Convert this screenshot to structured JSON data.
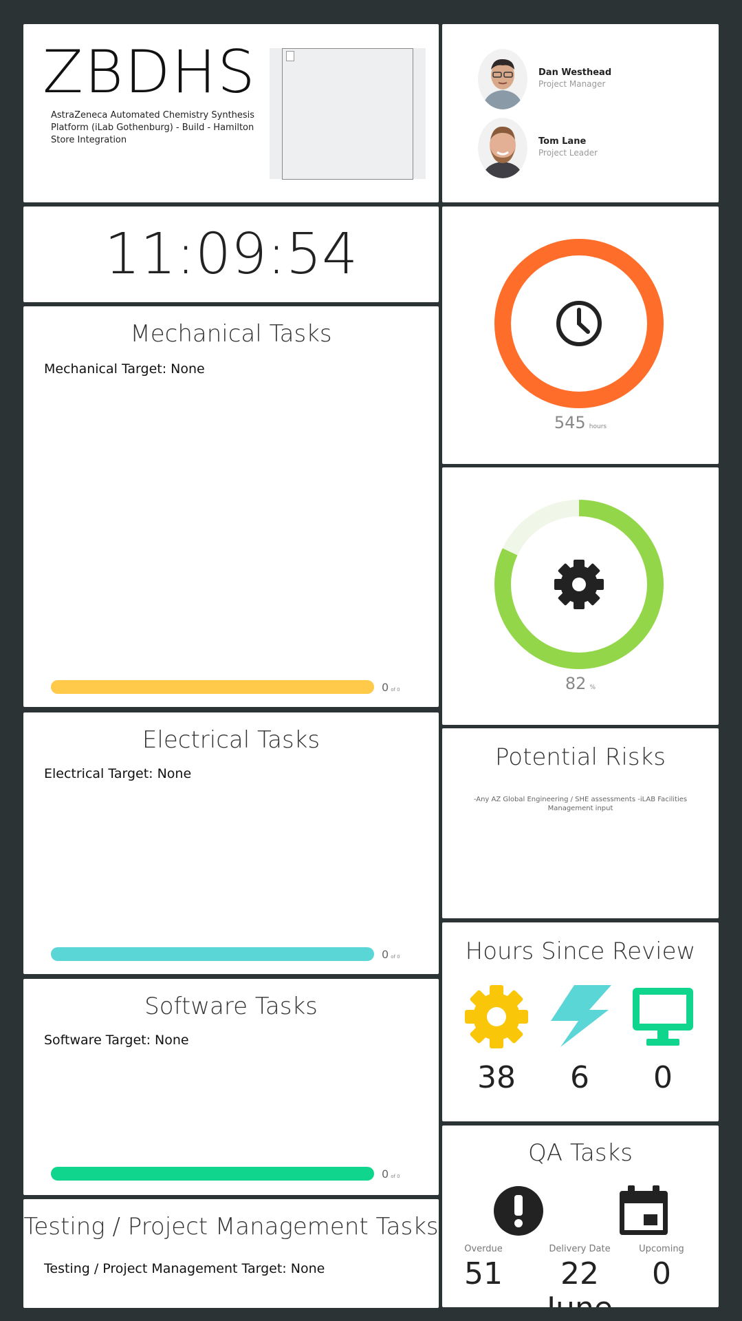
{
  "project": {
    "code": "ZBDHS",
    "description": "AstraZeneca Automated Chemistry Synthesis Platform (iLab Gothenburg) - Build - Hamilton Store Integration"
  },
  "people": [
    {
      "name": "Dan Westhead",
      "role": "Project Manager"
    },
    {
      "name": "Tom Lane",
      "role": "Project Leader"
    }
  ],
  "clock": {
    "time": "11:09:54"
  },
  "hours_gauge": {
    "value": "545",
    "unit": "hours",
    "icon": "clock-icon",
    "color": "#ff6d2a",
    "fraction": 1.0
  },
  "progress_gauge": {
    "value": "82",
    "unit": "%",
    "icon": "gear-icon",
    "color": "#94d64a",
    "track_color": "#f0f7e8",
    "fraction": 0.82
  },
  "mechanical": {
    "title": "Mechanical Tasks",
    "target": "Mechanical Target: None",
    "count": "0",
    "of": "of 0",
    "color": "#ffca4a",
    "fraction": 1.0
  },
  "electrical": {
    "title": "Electrical Tasks",
    "target": "Electrical Target: None",
    "count": "0",
    "of": "of 0",
    "color": "#5bd6d6",
    "fraction": 1.0
  },
  "software": {
    "title": "Software Tasks",
    "target": "Software Target: None",
    "count": "0",
    "of": "of 0",
    "color": "#0fd68c",
    "fraction": 1.0
  },
  "testing": {
    "title": "Testing / Project Management Tasks",
    "target": "Testing / Project Management Target: None"
  },
  "risks": {
    "title": "Potential Risks",
    "text": "-Any AZ Global Engineering / SHE assessments -iLAB Facilities Management input"
  },
  "hours_since_review": {
    "title": "Hours Since Review",
    "items": [
      {
        "icon": "gear-icon",
        "value": "38",
        "color": "#f9c60a"
      },
      {
        "icon": "lightning-icon",
        "value": "6",
        "color": "#5bd6d6"
      },
      {
        "icon": "monitor-icon",
        "value": "0",
        "color": "#0fd68c"
      }
    ]
  },
  "qa": {
    "title": "QA Tasks",
    "columns": [
      {
        "label": "Overdue",
        "value": "51"
      },
      {
        "label": "Delivery Date",
        "value": "22",
        "extra": "June"
      },
      {
        "label": "Upcoming",
        "value": "0"
      }
    ],
    "icons": [
      "exclamation-icon",
      "calendar-icon"
    ]
  }
}
